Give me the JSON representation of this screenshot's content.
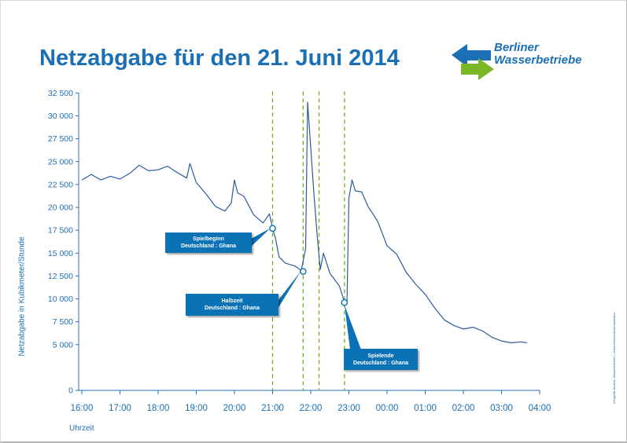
{
  "title": "Netzabgabe für den 21. Juni 2014",
  "logo": {
    "line1": "Berliner",
    "line2": "Wasserbetriebe"
  },
  "credit": "Infografik Berliner Wasserbetriebe | Unternehmenskommunikation",
  "colors": {
    "accent": "#1a6fb5",
    "line": "#2f5a9e",
    "marker": "#6ab023",
    "callout": "#0b72b5"
  },
  "chart_data": {
    "type": "line",
    "title": "Netzabgabe für den 21. Juni 2014",
    "xlabel": "Uhrzeit",
    "ylabel": "Netzabgabe in Kubikmeter/Stunde",
    "ylim": [
      0,
      32500
    ],
    "yticks": [
      "0",
      "5 000",
      "7 500",
      "10 000",
      "12 500",
      "15 000",
      "17 500",
      "20 000",
      "22 500",
      "25 000",
      "27 500",
      "30 000",
      "32 500"
    ],
    "xticks": [
      "16:00",
      "17:00",
      "18:00",
      "19:00",
      "20:00",
      "21:00",
      "22:00",
      "23:00",
      "00:00",
      "01:00",
      "02:00",
      "03:00",
      "04:00"
    ],
    "grid": false,
    "series": [
      {
        "points": [
          [
            "16:00",
            23000
          ],
          [
            "16:15",
            23600
          ],
          [
            "16:30",
            23000
          ],
          [
            "16:45",
            23400
          ],
          [
            "17:00",
            23100
          ],
          [
            "17:15",
            23700
          ],
          [
            "17:30",
            24600
          ],
          [
            "17:45",
            24000
          ],
          [
            "18:00",
            24100
          ],
          [
            "18:15",
            24500
          ],
          [
            "18:30",
            23800
          ],
          [
            "18:45",
            23200
          ],
          [
            "18:50",
            24800
          ],
          [
            "19:00",
            22700
          ],
          [
            "19:15",
            21500
          ],
          [
            "19:30",
            20100
          ],
          [
            "19:45",
            19600
          ],
          [
            "19:55",
            20500
          ],
          [
            "20:00",
            23000
          ],
          [
            "20:05",
            21600
          ],
          [
            "20:15",
            21200
          ],
          [
            "20:30",
            19200
          ],
          [
            "20:45",
            18300
          ],
          [
            "20:55",
            19300
          ],
          [
            "21:00",
            17700
          ],
          [
            "21:05",
            16500
          ],
          [
            "21:10",
            14600
          ],
          [
            "21:20",
            13900
          ],
          [
            "21:35",
            13600
          ],
          [
            "21:45",
            13100
          ],
          [
            "21:52",
            15500
          ],
          [
            "21:55",
            31500
          ],
          [
            "22:00",
            26500
          ],
          [
            "22:05",
            21500
          ],
          [
            "22:10",
            17000
          ],
          [
            "22:15",
            13200
          ],
          [
            "22:20",
            15000
          ],
          [
            "22:30",
            12800
          ],
          [
            "22:45",
            11400
          ],
          [
            "22:52",
            9900
          ],
          [
            "22:57",
            9700
          ],
          [
            "23:00",
            21000
          ],
          [
            "23:05",
            23000
          ],
          [
            "23:10",
            21800
          ],
          [
            "23:20",
            21700
          ],
          [
            "23:30",
            20100
          ],
          [
            "23:45",
            18500
          ],
          [
            "00:00",
            15800
          ],
          [
            "00:15",
            14900
          ],
          [
            "00:30",
            12900
          ],
          [
            "00:45",
            11600
          ],
          [
            "01:00",
            10500
          ],
          [
            "01:15",
            9000
          ],
          [
            "01:30",
            7700
          ],
          [
            "01:45",
            7100
          ],
          [
            "02:00",
            6700
          ],
          [
            "02:15",
            6900
          ],
          [
            "02:30",
            6500
          ],
          [
            "02:45",
            5800
          ],
          [
            "03:00",
            5400
          ],
          [
            "03:15",
            5200
          ],
          [
            "03:30",
            5300
          ],
          [
            "03:40",
            5200
          ]
        ]
      }
    ],
    "markers": [
      "21:00",
      "21:48",
      "22:13",
      "22:53"
    ],
    "annotations": [
      {
        "line1": "Spielbeginn",
        "line2": "Deutschland : Ghana",
        "x": "21:00",
        "y": 17700
      },
      {
        "line1": "Halbzeit",
        "line2": "Deutschland : Ghana",
        "x": "21:48",
        "y": 13000
      },
      {
        "line1": "Spielende",
        "line2": "Deutschland : Ghana",
        "x": "22:53",
        "y": 9600
      }
    ]
  }
}
